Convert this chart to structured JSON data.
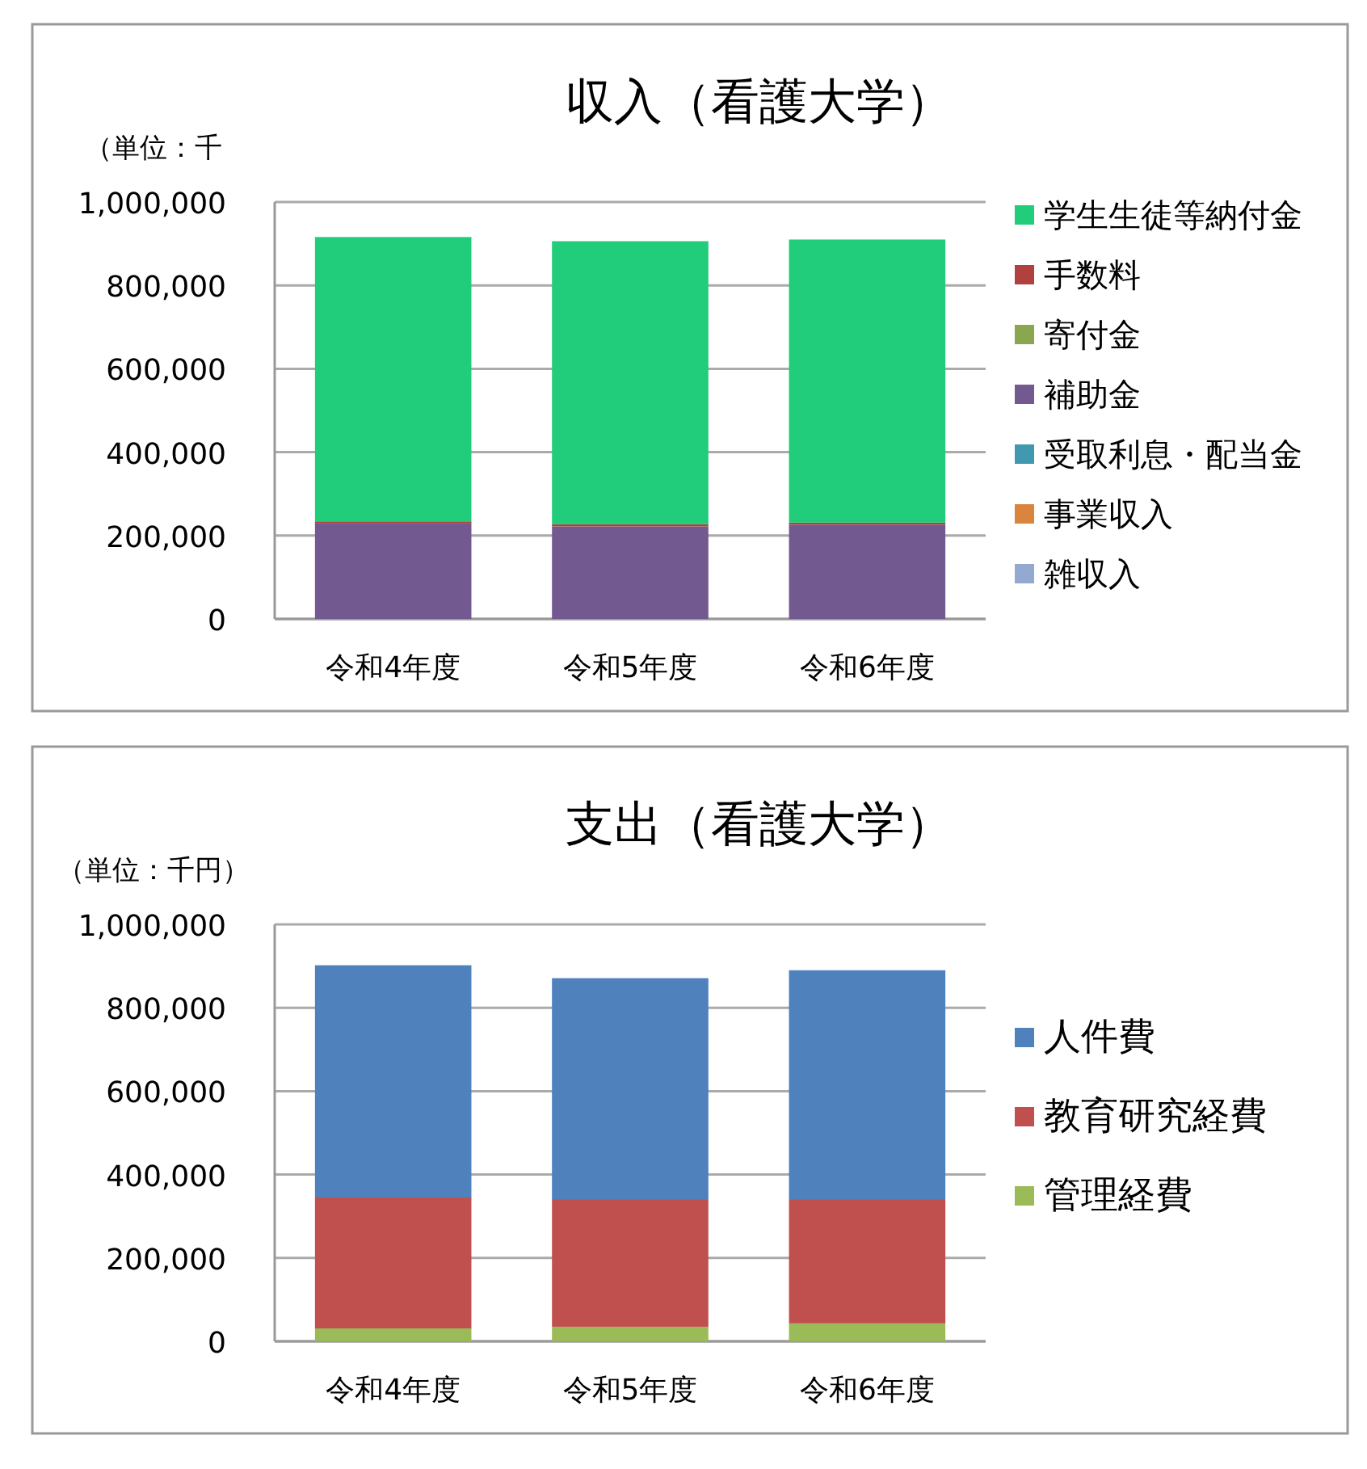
{
  "chart_data": [
    {
      "type": "bar",
      "stacked": true,
      "title": "収入（看護大学）",
      "ylabel": "（単位：千",
      "categories": [
        "令和4年度",
        "令和5年度",
        "令和6年度"
      ],
      "ylim": [
        0,
        1000000
      ],
      "yticks": [
        {
          "value": 0,
          "label": "0"
        },
        {
          "value": 200000,
          "label": "200,000"
        },
        {
          "value": 400000,
          "label": "400,000"
        },
        {
          "value": 600000,
          "label": "600,000"
        },
        {
          "value": 800000,
          "label": "800,000"
        },
        {
          "value": 1000000,
          "label": "1,000,000"
        }
      ],
      "grid": "y",
      "legend": "right",
      "series": [
        {
          "name": "雑収入",
          "color": "#93a9cf",
          "values": [
            null,
            null,
            null
          ]
        },
        {
          "name": "事業収入",
          "color": "#db843d",
          "values": [
            null,
            null,
            null
          ]
        },
        {
          "name": "受取利息・配当金",
          "color": "#4198af",
          "values": [
            null,
            null,
            null
          ]
        },
        {
          "name": "補助金",
          "color": "#725990",
          "values": [
            229000,
            222000,
            226000
          ]
        },
        {
          "name": "寄付金",
          "color": "#8aa64e",
          "values": [
            null,
            null,
            null
          ]
        },
        {
          "name": "手数料",
          "color": "#b0413e",
          "values": [
            5000,
            5000,
            5000
          ]
        },
        {
          "name": "学生生徒等納付金",
          "color": "#21cc7b",
          "values": [
            682000,
            679000,
            679000
          ]
        }
      ]
    },
    {
      "type": "bar",
      "stacked": true,
      "title": "支出（看護大学）",
      "ylabel": "（単位：千円）",
      "categories": [
        "令和4年度",
        "令和5年度",
        "令和6年度"
      ],
      "ylim": [
        0,
        1000000
      ],
      "yticks": [
        {
          "value": 0,
          "label": "0"
        },
        {
          "value": 200000,
          "label": "200,000"
        },
        {
          "value": 400000,
          "label": "400,000"
        },
        {
          "value": 600000,
          "label": "600,000"
        },
        {
          "value": 800000,
          "label": "800,000"
        },
        {
          "value": 1000000,
          "label": "1,000,000"
        }
      ],
      "grid": "y",
      "legend": "right",
      "series": [
        {
          "name": "管理経費",
          "color": "#9bbb59",
          "values": [
            31000,
            35000,
            43000
          ]
        },
        {
          "name": "教育研究経費",
          "color": "#c0504d",
          "values": [
            314000,
            306000,
            298000
          ]
        },
        {
          "name": "人件費",
          "color": "#4f81bd",
          "values": [
            557000,
            530000,
            549000
          ]
        }
      ]
    }
  ]
}
